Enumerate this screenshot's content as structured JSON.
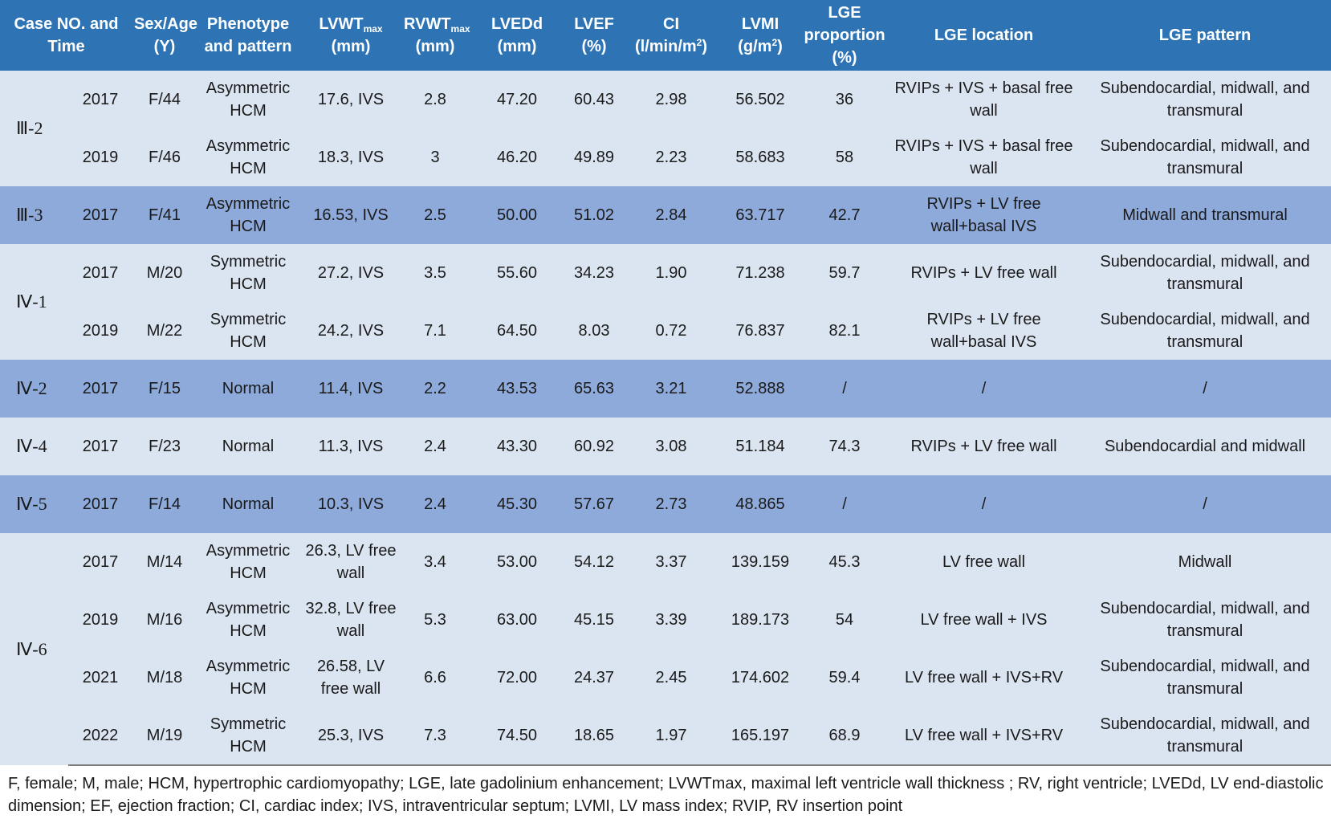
{
  "table": {
    "header": {
      "case": "Case NO. and Time",
      "sexage": "Sex/Age (Y)",
      "phenotype": "Phenotype and pattern",
      "lvwt_base": "LVWT",
      "lvwt_sub": "max",
      "lvwt_unit": "(mm)",
      "rvwt_base": "RVWT",
      "rvwt_sub": "max",
      "rvwt_unit": "(mm)",
      "lvedd_base": "LVEDd",
      "lvedd_unit": "(mm)",
      "lvef_base": "LVEF",
      "lvef_unit": "(%)",
      "ci_base": "CI",
      "ci_unit_pre": "(l/min/m",
      "ci_unit_sup": "2",
      "ci_unit_post": ")",
      "lvmi_base": "LVMI",
      "lvmi_unit_pre": "(g/m",
      "lvmi_unit_sup": "2",
      "lvmi_unit_post": ")",
      "lgeprop": "LGE proportion (%)",
      "lgeloc": "LGE location",
      "lgepat": "LGE pattern"
    },
    "groups": [
      {
        "case": "Ⅲ-2",
        "shade": "light",
        "rows": [
          {
            "year": "2017",
            "sexage": "F/44",
            "phenotype": "Asymmetric HCM",
            "lvwt": "17.6, IVS",
            "rvwt": "2.8",
            "lvedd": "47.20",
            "lvef": "60.43",
            "ci": "2.98",
            "lvmi": "56.502",
            "lgeprop": "36",
            "lgeloc": "RVIPs + IVS + basal free wall",
            "lgepat": "Subendocardial, midwall, and transmural"
          },
          {
            "year": "2019",
            "sexage": "F/46",
            "phenotype": "Asymmetric HCM",
            "lvwt": "18.3, IVS",
            "rvwt": "3",
            "lvedd": "46.20",
            "lvef": "49.89",
            "ci": "2.23",
            "lvmi": "58.683",
            "lgeprop": "58",
            "lgeloc": "RVIPs + IVS + basal free wall",
            "lgepat": "Subendocardial, midwall, and transmural"
          }
        ]
      },
      {
        "case": "Ⅲ-3",
        "shade": "dark",
        "rows": [
          {
            "year": "2017",
            "sexage": "F/41",
            "phenotype": "Asymmetric HCM",
            "lvwt": "16.53, IVS",
            "rvwt": "2.5",
            "lvedd": "50.00",
            "lvef": "51.02",
            "ci": "2.84",
            "lvmi": "63.717",
            "lgeprop": "42.7",
            "lgeloc": "RVIPs + LV free wall+basal IVS",
            "lgepat": "Midwall and transmural"
          }
        ]
      },
      {
        "case": "Ⅳ-1",
        "shade": "light",
        "rows": [
          {
            "year": "2017",
            "sexage": "M/20",
            "phenotype": "Symmetric HCM",
            "lvwt": "27.2, IVS",
            "rvwt": "3.5",
            "lvedd": "55.60",
            "lvef": "34.23",
            "ci": "1.90",
            "lvmi": "71.238",
            "lgeprop": "59.7",
            "lgeloc": "RVIPs + LV free wall",
            "lgepat": "Subendocardial, midwall, and transmural"
          },
          {
            "year": "2019",
            "sexage": "M/22",
            "phenotype": "Symmetric HCM",
            "lvwt": "24.2, IVS",
            "rvwt": "7.1",
            "lvedd": "64.50",
            "lvef": "8.03",
            "ci": "0.72",
            "lvmi": "76.837",
            "lgeprop": "82.1",
            "lgeloc": "RVIPs + LV free wall+basal IVS",
            "lgepat": "Subendocardial, midwall, and transmural"
          }
        ]
      },
      {
        "case": "Ⅳ-2",
        "shade": "dark",
        "rows": [
          {
            "year": "2017",
            "sexage": "F/15",
            "phenotype": "Normal",
            "lvwt": "11.4, IVS",
            "rvwt": "2.2",
            "lvedd": "43.53",
            "lvef": "65.63",
            "ci": "3.21",
            "lvmi": "52.888",
            "lgeprop": "/",
            "lgeloc": "/",
            "lgepat": "/"
          }
        ]
      },
      {
        "case": "Ⅳ-4",
        "shade": "light",
        "rows": [
          {
            "year": "2017",
            "sexage": "F/23",
            "phenotype": "Normal",
            "lvwt": "11.3, IVS",
            "rvwt": "2.4",
            "lvedd": "43.30",
            "lvef": "60.92",
            "ci": "3.08",
            "lvmi": "51.184",
            "lgeprop": "74.3",
            "lgeloc": "RVIPs + LV free wall",
            "lgepat": "Subendocardial and midwall"
          }
        ]
      },
      {
        "case": "Ⅳ-5",
        "shade": "dark",
        "rows": [
          {
            "year": "2017",
            "sexage": "F/14",
            "phenotype": "Normal",
            "lvwt": "10.3, IVS",
            "rvwt": "2.4",
            "lvedd": "45.30",
            "lvef": "57.67",
            "ci": "2.73",
            "lvmi": "48.865",
            "lgeprop": "/",
            "lgeloc": "/",
            "lgepat": "/"
          }
        ]
      },
      {
        "case": "Ⅳ-6",
        "shade": "light",
        "rows": [
          {
            "year": "2017",
            "sexage": "M/14",
            "phenotype": "Asymmetric HCM",
            "lvwt": "26.3, LV free wall",
            "rvwt": "3.4",
            "lvedd": "53.00",
            "lvef": "54.12",
            "ci": "3.37",
            "lvmi": "139.159",
            "lgeprop": "45.3",
            "lgeloc": "LV free wall",
            "lgepat": "Midwall"
          },
          {
            "year": "2019",
            "sexage": "M/16",
            "phenotype": "Asymmetric HCM",
            "lvwt": "32.8, LV free wall",
            "rvwt": "5.3",
            "lvedd": "63.00",
            "lvef": "45.15",
            "ci": "3.39",
            "lvmi": "189.173",
            "lgeprop": "54",
            "lgeloc": "LV free wall + IVS",
            "lgepat": "Subendocardial, midwall, and transmural"
          },
          {
            "year": "2021",
            "sexage": "M/18",
            "phenotype": "Asymmetric HCM",
            "lvwt": "26.58, LV free wall",
            "rvwt": "6.6",
            "lvedd": "72.00",
            "lvef": "24.37",
            "ci": "2.45",
            "lvmi": "174.602",
            "lgeprop": "59.4",
            "lgeloc": "LV free wall + IVS+RV",
            "lgepat": "Subendocardial, midwall, and transmural"
          },
          {
            "year": "2022",
            "sexage": "M/19",
            "phenotype": "Symmetric HCM",
            "lvwt": "25.3, IVS",
            "rvwt": "7.3",
            "lvedd": "74.50",
            "lvef": "18.65",
            "ci": "1.97",
            "lvmi": "165.197",
            "lgeprop": "68.9",
            "lgeloc": "LV free wall + IVS+RV",
            "lgepat": "Subendocardial, midwall, and transmural"
          }
        ]
      }
    ]
  },
  "footnote": "F, female; M, male; HCM, hypertrophic cardiomyopathy; LGE, late gadolinium enhancement; LVWTmax, maximal left ventricle wall thickness ; RV, right ventricle; LVEDd, LV end-diastolic dimension; EF, ejection fraction; CI, cardiac index; IVS, intraventricular septum; LVMI, LV mass index; RVIP, RV insertion point",
  "colors": {
    "header_bg": "#2e74b5",
    "row_light": "#dbe5f1",
    "row_dark": "#8eaadb"
  }
}
